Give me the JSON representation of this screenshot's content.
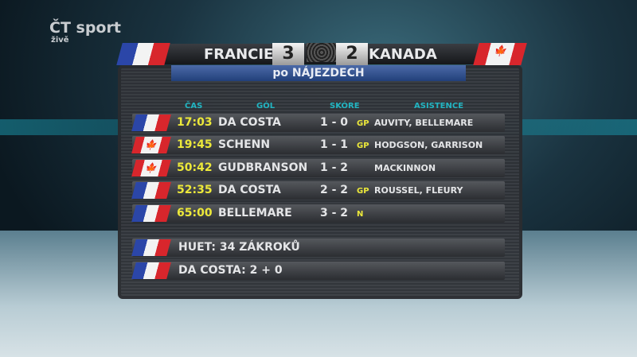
{
  "channel": {
    "logo": "ČT sport",
    "live": "živě"
  },
  "header": {
    "home_team": "FRANCIE",
    "home_score": "3",
    "away_score": "2",
    "away_team": "KANADA",
    "subtitle": "po NÁJEZDECH",
    "home_flag": "france",
    "away_flag": "canada"
  },
  "columns": {
    "time": "ČAS",
    "goal": "GÓL",
    "score": "SKÓRE",
    "assists": "ASISTENCE"
  },
  "goals": [
    {
      "flag": "france",
      "time": "17:03",
      "scorer": "DA COSTA",
      "score": "1 - 0",
      "type": "GP",
      "assists": "AUVITY, BELLEMARE"
    },
    {
      "flag": "canada",
      "time": "19:45",
      "scorer": "SCHENN",
      "score": "1 - 1",
      "type": "GP",
      "assists": "HODGSON, GARRISON"
    },
    {
      "flag": "canada",
      "time": "50:42",
      "scorer": "GUDBRANSON",
      "score": "1 - 2",
      "type": "",
      "assists": "MACKINNON"
    },
    {
      "flag": "france",
      "time": "52:35",
      "scorer": "DA COSTA",
      "score": "2 - 2",
      "type": "GP",
      "assists": "ROUSSEL, FLEURY"
    },
    {
      "flag": "france",
      "time": "65:00",
      "scorer": "BELLEMARE",
      "score": "3 - 2",
      "type": "N",
      "assists": ""
    }
  ],
  "stats": [
    {
      "flag": "france",
      "text": "HUET: 34 ZÁKROKŮ"
    },
    {
      "flag": "france",
      "text": "DA COSTA: 2 + 0"
    }
  ],
  "colors": {
    "time": "#ece83a",
    "column_header": "#22b5c2",
    "subtitle_bar": "#3a5a9a"
  }
}
